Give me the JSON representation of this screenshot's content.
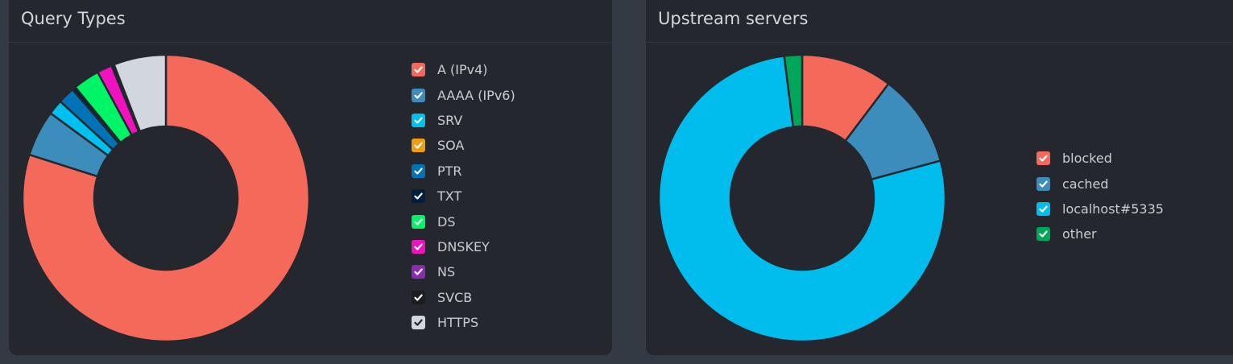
{
  "query_types": {
    "title": "Query Types",
    "legend": [
      {
        "label": "A (IPv4)",
        "color": "#f4695a",
        "checked": true
      },
      {
        "label": "AAAA (IPv6)",
        "color": "#3c8dbc",
        "checked": true
      },
      {
        "label": "SRV",
        "color": "#00c0ef",
        "checked": true
      },
      {
        "label": "SOA",
        "color": "#f39c12",
        "checked": true
      },
      {
        "label": "PTR",
        "color": "#0073b7",
        "checked": true
      },
      {
        "label": "TXT",
        "color": "#001f3f",
        "checked": true
      },
      {
        "label": "DS",
        "color": "#00f566",
        "checked": true
      },
      {
        "label": "DNSKEY",
        "color": "#f012be",
        "checked": true
      },
      {
        "label": "NS",
        "color": "#8c2ab0",
        "checked": true
      },
      {
        "label": "SVCB",
        "color": "#1b1d21",
        "checked": true
      },
      {
        "label": "HTTPS",
        "color": "#d2d6de",
        "checked": true
      }
    ]
  },
  "upstream_servers": {
    "title": "Upstream servers",
    "legend": [
      {
        "label": "blocked",
        "color": "#f4695a",
        "checked": true
      },
      {
        "label": "cached",
        "color": "#3c8dbc",
        "checked": true
      },
      {
        "label": "localhost#5335",
        "color": "#00bdee",
        "checked": true
      },
      {
        "label": "other",
        "color": "#00a65a",
        "checked": true
      }
    ]
  },
  "chart_data": [
    {
      "type": "pie",
      "title": "Query Types",
      "hole": 0.5,
      "categories": [
        "A (IPv4)",
        "AAAA (IPv6)",
        "SRV",
        "SOA",
        "PTR",
        "TXT",
        "DS",
        "DNSKEY",
        "NS",
        "SVCB",
        "HTTPS"
      ],
      "values": [
        79.9,
        5.2,
        1.7,
        0,
        1.9,
        0.4,
        3.0,
        1.7,
        0,
        0.3,
        5.9
      ],
      "colors": [
        "#f4695a",
        "#3c8dbc",
        "#00c0ef",
        "#f39c12",
        "#0073b7",
        "#001f3f",
        "#00f566",
        "#f012be",
        "#8c2ab0",
        "#1b1d21",
        "#d2d6de"
      ],
      "legend": "right"
    },
    {
      "type": "pie",
      "title": "Upstream servers",
      "hole": 0.5,
      "categories": [
        "blocked",
        "cached",
        "localhost#5335",
        "other"
      ],
      "values": [
        10.3,
        10.5,
        77.2,
        2.0
      ],
      "colors": [
        "#f4695a",
        "#3c8dbc",
        "#00bdee",
        "#00a65a"
      ],
      "legend": "right"
    }
  ]
}
